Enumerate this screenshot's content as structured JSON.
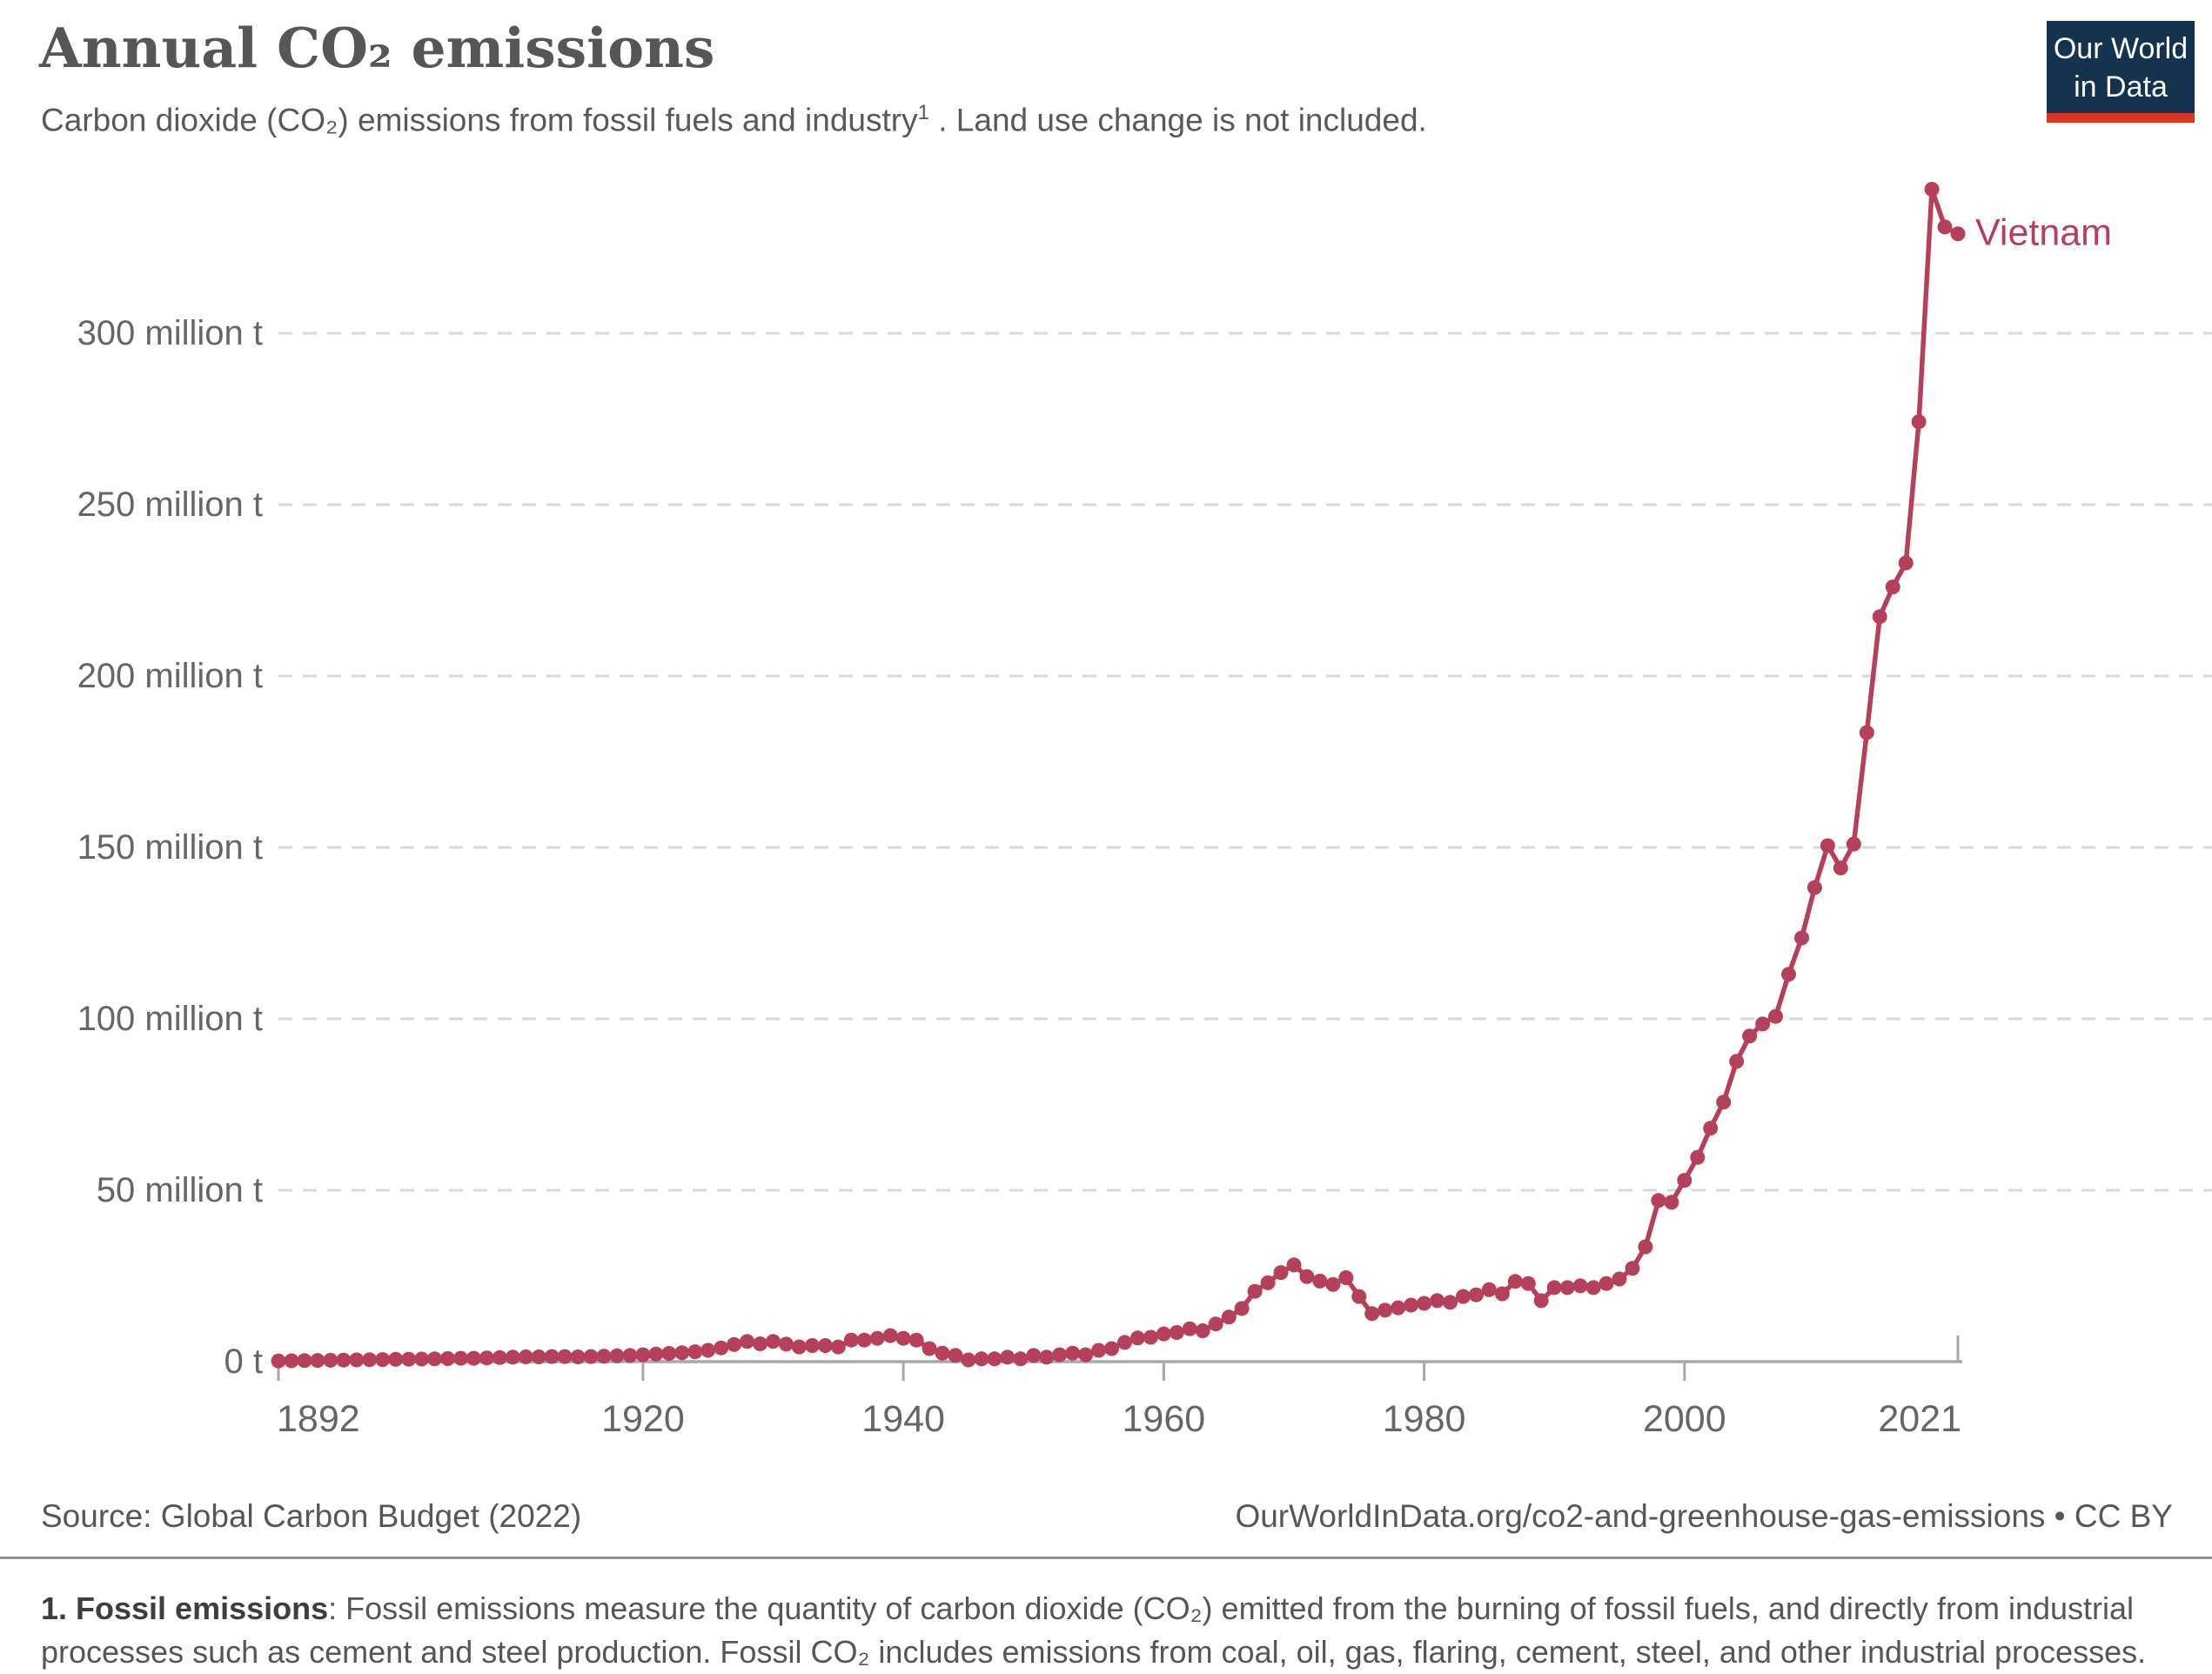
{
  "header": {
    "title": "Annual CO₂ emissions",
    "subtitle_pre": "Carbon dioxide (CO₂) emissions from fossil fuels and industry",
    "subtitle_sup": "1",
    "subtitle_post": " . Land use change is not included.",
    "logo_line1": "Our World",
    "logo_line2": "in Data"
  },
  "footer": {
    "source": "Source: Global Carbon Budget (2022)",
    "link": "OurWorldInData.org/co2-and-greenhouse-gas-emissions • CC BY",
    "footnote_lead": "1. Fossil emissions",
    "footnote_body": ": Fossil emissions measure the quantity of carbon dioxide (CO₂) emitted from the burning of fossil fuels, and directly from industrial processes such as cement and steel production. Fossil CO₂ includes emissions from coal, oil, gas, flaring, cement, steel, and other industrial processes."
  },
  "colors": {
    "accent": "#b5405c",
    "logo_navy": "#15334e",
    "logo_red": "#d93522",
    "grid": "#d9d9d9",
    "axis_line": "#a8a8a8",
    "axis_text": "#666666",
    "title_text": "#565656",
    "subtitle_text": "#58595b",
    "footer_text": "#575757"
  },
  "chart_data": {
    "type": "line",
    "title": "Annual CO₂ emissions",
    "entity": "Vietnam",
    "series_label": "Vietnam",
    "unit": "million t",
    "xlabel": "",
    "ylabel": "",
    "xlim": [
      1892,
      2021
    ],
    "ylim": [
      0,
      355
    ],
    "grid": "dashed horizontal gridlines, solid baseline",
    "legend_position": "end-of-line label",
    "line_color": "#b5405c",
    "x_ticks": [
      1892,
      1920,
      1940,
      1960,
      1980,
      2000,
      2021
    ],
    "y_ticks": [
      0,
      50,
      100,
      150,
      200,
      250,
      300
    ],
    "y_tick_labels": [
      "0 t",
      "50 million t",
      "100 million t",
      "150 million t",
      "200 million t",
      "250 million t",
      "300 million t"
    ],
    "years": [
      1892,
      1893,
      1894,
      1895,
      1896,
      1897,
      1898,
      1899,
      1900,
      1901,
      1902,
      1903,
      1904,
      1905,
      1906,
      1907,
      1908,
      1909,
      1910,
      1911,
      1912,
      1913,
      1914,
      1915,
      1916,
      1917,
      1918,
      1919,
      1920,
      1921,
      1922,
      1923,
      1924,
      1925,
      1926,
      1927,
      1928,
      1929,
      1930,
      1931,
      1932,
      1933,
      1934,
      1935,
      1936,
      1937,
      1938,
      1939,
      1940,
      1941,
      1942,
      1943,
      1944,
      1945,
      1946,
      1947,
      1948,
      1949,
      1950,
      1951,
      1952,
      1953,
      1954,
      1955,
      1956,
      1957,
      1958,
      1959,
      1960,
      1961,
      1962,
      1963,
      1964,
      1965,
      1966,
      1967,
      1968,
      1969,
      1970,
      1971,
      1972,
      1973,
      1974,
      1975,
      1976,
      1977,
      1978,
      1979,
      1980,
      1981,
      1982,
      1983,
      1984,
      1985,
      1986,
      1987,
      1988,
      1989,
      1990,
      1991,
      1992,
      1993,
      1994,
      1995,
      1996,
      1997,
      1998,
      1999,
      2000,
      2001,
      2002,
      2003,
      2004,
      2005,
      2006,
      2007,
      2008,
      2009,
      2010,
      2011,
      2012,
      2013,
      2014,
      2015,
      2016,
      2017,
      2018,
      2019,
      2020,
      2021
    ],
    "values": [
      0.2,
      0.25,
      0.3,
      0.35,
      0.4,
      0.45,
      0.5,
      0.55,
      0.6,
      0.65,
      0.7,
      0.75,
      0.8,
      0.9,
      1.0,
      1.0,
      1.1,
      1.2,
      1.3,
      1.4,
      1.4,
      1.5,
      1.5,
      1.4,
      1.5,
      1.6,
      1.7,
      1.8,
      2.0,
      2.2,
      2.4,
      2.6,
      2.9,
      3.3,
      4.0,
      5.0,
      5.9,
      5.2,
      5.9,
      5.1,
      4.3,
      4.7,
      4.7,
      4.3,
      6.3,
      6.3,
      6.8,
      7.6,
      6.8,
      6.3,
      3.8,
      2.5,
      1.8,
      0.5,
      0.8,
      0.8,
      1.3,
      0.8,
      1.8,
      1.3,
      2.0,
      2.5,
      2.0,
      3.3,
      3.8,
      5.6,
      6.9,
      7.1,
      8.1,
      8.5,
      9.6,
      9.0,
      11.0,
      13.0,
      15.5,
      20.5,
      23.0,
      26.0,
      28.2,
      24.8,
      23.5,
      22.5,
      24.5,
      19.0,
      14.0,
      15.0,
      15.7,
      16.5,
      17.0,
      17.8,
      17.3,
      19.0,
      19.5,
      21.0,
      19.8,
      23.4,
      22.8,
      17.8,
      21.6,
      21.6,
      22.1,
      21.6,
      22.8,
      24.1,
      27.2,
      33.5,
      47.0,
      46.5,
      52.9,
      59.6,
      68.1,
      75.7,
      87.6,
      95.0,
      98.5,
      100.7,
      113.0,
      123.6,
      138.3,
      150.5,
      144.0,
      151.0,
      183.5,
      217.3,
      226.0,
      233.0,
      274.2,
      342.0,
      331.0,
      329.0
    ]
  }
}
